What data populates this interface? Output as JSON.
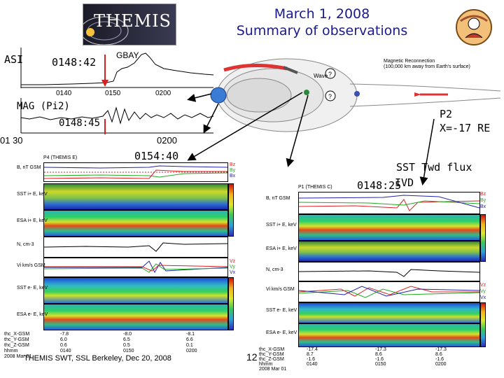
{
  "header": {
    "title_line1": "March 1, 2008",
    "title_line2": "Summary of observations",
    "logo_text": "THEMIS"
  },
  "left_top": {
    "asi_label": "ASI",
    "asi_time": "0148:42",
    "station": "GBAY",
    "ticks": [
      "0140",
      "0150",
      "0200"
    ],
    "mag_label": "MAG (Pi2)",
    "mag_time": "0148:45",
    "mag_ticks": [
      "01 30",
      "0200"
    ]
  },
  "annotations": {
    "mid_time": "0154:40",
    "p2_line1": "P2",
    "p2_line2": "X=-17 RE",
    "sst_line1": "SST Twd flux",
    "sst_time": "0148:25",
    "sst_line2": "IVD"
  },
  "schematic": {
    "wave_label": "Wave",
    "recon_line1": "Magnetic Reconnection",
    "recon_line2": "(100,000 km away from Earth's surface)",
    "question": "?"
  },
  "panel_left": {
    "header": "P4 (THEMIS E)",
    "ylabels": [
      "B, nT GSM",
      "SST i+ E, keV",
      "ESA i+ E, keV",
      "N, cm-3",
      "Vi km/s GSM",
      "SST e- E, keV",
      "ESA e- E, keV"
    ],
    "legend": [
      "Bz",
      "By",
      "Bx"
    ],
    "vlegend": [
      "Vz",
      "Vy",
      "Vx"
    ],
    "foot_rows": [
      [
        "thc_X-GSM",
        "-7.8",
        "-8.0",
        "-8.1"
      ],
      [
        "thc_Y-GSM",
        "6.0",
        "6.5",
        "6.6"
      ],
      [
        "thc_Z-GSM",
        "0.6",
        "0.5",
        "0.1"
      ],
      [
        "hhmm",
        "0140",
        "0150",
        "0200"
      ]
    ],
    "date": "2008 Mar 01"
  },
  "panel_right": {
    "header": "P1 (THEMIS C)",
    "ylabels": [
      "B, nT GSM",
      "SST i+ E, keV",
      "ESA i+ E, keV",
      "N, cm-3",
      "Vi km/s GSM",
      "SST e- E, keV",
      "ESA e- E, keV"
    ],
    "legend": [
      "Bz",
      "By",
      "Bx"
    ],
    "vlegend": [
      "Vz",
      "Vy",
      "Vx"
    ],
    "foot_rows": [
      [
        "thc_X-GSM",
        "-17.4",
        "-17.3",
        "-17.3"
      ],
      [
        "thc_Y-GSM",
        "8.7",
        "8.6",
        "8.6"
      ],
      [
        "thc_Z-GSM",
        "-1.6",
        "-1.6",
        "-1.6"
      ],
      [
        "hhmm",
        "0140",
        "0150",
        "0200"
      ]
    ],
    "date": "2008 Mar 01"
  },
  "footer": {
    "credit": "THEMIS SWT, SSL Berkeley, Dec 20, 2008",
    "page": "12"
  }
}
